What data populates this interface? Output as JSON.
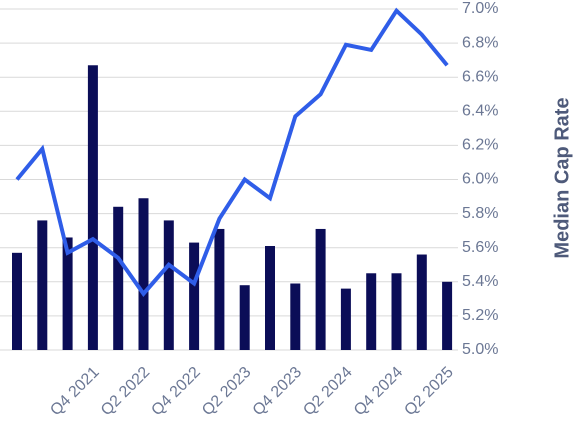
{
  "chart_data": {
    "type": "combo",
    "y_axis_label": "Median Cap Rate",
    "categories": [
      null,
      null,
      null,
      "Q4 2021",
      null,
      "Q2 2022",
      null,
      "Q4 2022",
      null,
      "Q2 2023",
      null,
      "Q4 2023",
      null,
      "Q2 2024",
      null,
      "Q4 2024",
      null,
      "Q2 2025"
    ],
    "series": [
      {
        "type": "bar",
        "color": "#0b0d57",
        "values": [
          5.57,
          5.76,
          5.66,
          6.67,
          5.84,
          5.89,
          5.76,
          5.63,
          5.71,
          5.38,
          5.61,
          5.39,
          5.71,
          5.36,
          5.45,
          5.45,
          5.56,
          5.4
        ]
      },
      {
        "type": "line",
        "color": "#2f5de8",
        "values": [
          6.0,
          6.18,
          5.57,
          5.65,
          5.54,
          5.33,
          5.5,
          5.39,
          5.77,
          6.0,
          5.89,
          6.37,
          6.5,
          6.79,
          6.76,
          6.99,
          6.85,
          6.67
        ]
      }
    ],
    "ylim": [
      5.0,
      7.0
    ],
    "yticks": [
      {
        "value": 5.0,
        "label": "5.0%"
      },
      {
        "value": 5.2,
        "label": "5.2%"
      },
      {
        "value": 5.4,
        "label": "5.4%"
      },
      {
        "value": 5.6,
        "label": "5.6%"
      },
      {
        "value": 5.8,
        "label": "5.8%"
      },
      {
        "value": 6.0,
        "label": "6.0%"
      },
      {
        "value": 6.2,
        "label": "6.2%"
      },
      {
        "value": 6.4,
        "label": "6.4%"
      },
      {
        "value": 6.6,
        "label": "6.6%"
      },
      {
        "value": 6.8,
        "label": "6.8%"
      },
      {
        "value": 7.0,
        "label": "7.0%"
      }
    ],
    "grid": true
  }
}
